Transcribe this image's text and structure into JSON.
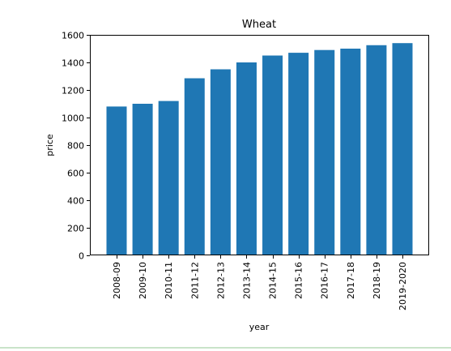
{
  "chart_data": {
    "type": "bar",
    "title": "Wheat",
    "xlabel": "year",
    "ylabel": "price",
    "categories": [
      "2008-09",
      "2009-10",
      "2010-11",
      "2011-12",
      "2012-13",
      "2013-14",
      "2014-15",
      "2015-16",
      "2016-17",
      "2017-18",
      "2018-19",
      "2019-2020"
    ],
    "values": [
      1080,
      1100,
      1120,
      1285,
      1350,
      1400,
      1450,
      1470,
      1490,
      1500,
      1525,
      1540
    ],
    "ylim": [
      0,
      1600
    ],
    "yticks": [
      0,
      200,
      400,
      600,
      800,
      1000,
      1200,
      1400,
      1600
    ],
    "bar_color": "#1f77b4",
    "grid": false,
    "legend": "none"
  }
}
